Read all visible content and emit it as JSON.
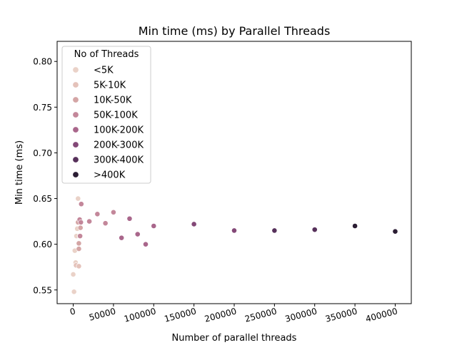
{
  "chart_data": {
    "type": "scatter",
    "title": "Min time (ms) by Parallel Threads",
    "xlabel": "Number of parallel threads",
    "ylabel": "Min time (ms)",
    "xlim": [
      -20000,
      420000
    ],
    "ylim": [
      0.535,
      0.822
    ],
    "xticks": [
      0,
      50000,
      100000,
      150000,
      200000,
      250000,
      300000,
      350000,
      400000
    ],
    "yticks": [
      0.55,
      0.6,
      0.65,
      0.7,
      0.75,
      0.8
    ],
    "ytick_labels": [
      "0.55",
      "0.60",
      "0.65",
      "0.70",
      "0.75",
      "0.80"
    ],
    "grid": false,
    "legend": {
      "title": "No of Threads",
      "placement": "top-left",
      "entries": [
        {
          "label": "<5K",
          "color": "#ead2c8"
        },
        {
          "label": "5K-10K",
          "color": "#e4c2ba"
        },
        {
          "label": "10K-50K",
          "color": "#d4a5a5"
        },
        {
          "label": "50K-100K",
          "color": "#c3879a"
        },
        {
          "label": "100K-200K",
          "color": "#a9668b"
        },
        {
          "label": "200K-300K",
          "color": "#834877"
        },
        {
          "label": "300K-400K",
          "color": "#56305a"
        },
        {
          "label": ">400K",
          "color": "#2b1d33"
        }
      ]
    },
    "series": [
      {
        "label": "<5K",
        "points": [
          [
            0,
            0.567
          ],
          [
            1000,
            0.548
          ],
          [
            2000,
            0.593
          ],
          [
            3000,
            0.58
          ],
          [
            4000,
            0.609
          ],
          [
            5000,
            0.617
          ],
          [
            6000,
            0.65
          ]
        ]
      },
      {
        "label": "5K-10K",
        "points": [
          [
            3500,
            0.577
          ],
          [
            7000,
            0.576
          ]
        ]
      },
      {
        "label": "10K-50K",
        "points": [
          [
            6000,
            0.624
          ],
          [
            7000,
            0.595
          ],
          [
            7000,
            0.601
          ],
          [
            8000,
            0.609
          ],
          [
            8000,
            0.627
          ],
          [
            9000,
            0.618
          ]
        ]
      },
      {
        "label": "50K-100K",
        "points": [
          [
            8000,
            0.627
          ],
          [
            8500,
            0.609
          ],
          [
            9500,
            0.624
          ],
          [
            10000,
            0.644
          ],
          [
            20000,
            0.625
          ],
          [
            30000,
            0.633
          ],
          [
            40000,
            0.623
          ],
          [
            50000,
            0.635
          ]
        ]
      },
      {
        "label": "100K-200K",
        "points": [
          [
            60000,
            0.607
          ],
          [
            70000,
            0.628
          ],
          [
            80000,
            0.611
          ],
          [
            90000,
            0.6
          ],
          [
            100000,
            0.62
          ]
        ]
      },
      {
        "label": "200K-300K",
        "points": [
          [
            150000,
            0.622
          ],
          [
            200000,
            0.615
          ]
        ]
      },
      {
        "label": "300K-400K",
        "points": [
          [
            250000,
            0.615
          ],
          [
            300000,
            0.616
          ]
        ]
      },
      {
        "label": ">400K",
        "points": [
          [
            350000,
            0.62
          ],
          [
            400000,
            0.614
          ]
        ]
      }
    ]
  }
}
